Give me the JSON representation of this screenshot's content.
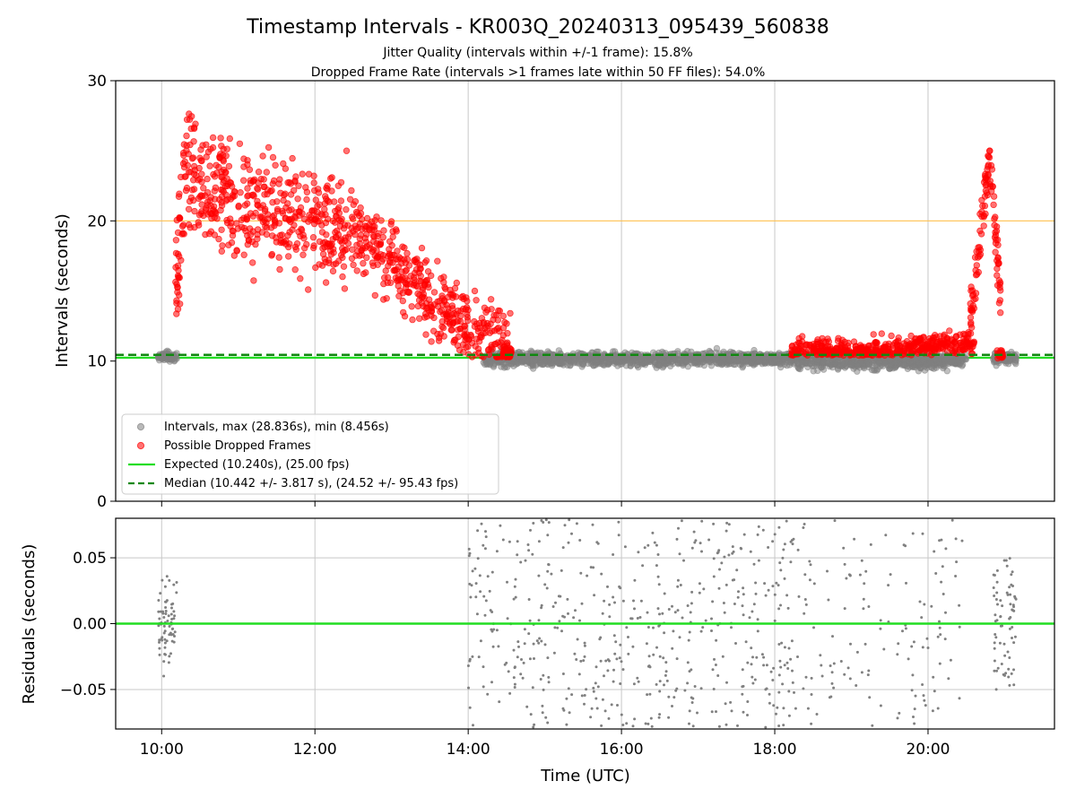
{
  "chart_data": [
    {
      "type": "scatter",
      "title": "Timestamp Intervals - KR003Q_20240313_095439_560838",
      "subtitle_lines": [
        "Jitter Quality (intervals within +/-1 frame): 15.8%",
        "Dropped Frame Rate (intervals >1 frames late within 50 FF files): 54.0%"
      ],
      "xlabel": "",
      "ylabel": "Intervals (seconds)",
      "x_range_hours": [
        9.4,
        21.65
      ],
      "ylim": [
        0,
        30
      ],
      "yticks": [
        0,
        10,
        20,
        30
      ],
      "xticks": [
        "10:00",
        "12:00",
        "14:00",
        "16:00",
        "18:00",
        "20:00"
      ],
      "xtick_hours": [
        10,
        12,
        14,
        16,
        18,
        20
      ],
      "grid": true,
      "threshold_line": {
        "y": 20,
        "color": "#ffc04d"
      },
      "expected_line": {
        "y": 10.24,
        "color": "#22dd22"
      },
      "median_line": {
        "y": 10.442,
        "color": "#118811"
      },
      "series": [
        {
          "name": "Intervals, max (28.836s), min (8.456s)",
          "color": "#808080",
          "max": 28.836,
          "min": 8.456
        },
        {
          "name": "Possible Dropped Frames",
          "color": "#ff0000"
        }
      ],
      "legend": {
        "placement": "lower-left",
        "entries": [
          "Intervals, max (28.836s), min (8.456s)",
          "Possible Dropped Frames",
          "Expected (10.240s), (25.00 fps)",
          "Median (10.442 +/- 3.817 s), (24.52 +/- 95.43 fps)"
        ]
      },
      "normal_segments": [
        {
          "from": 9.95,
          "to": 10.2,
          "mean": 10.3,
          "spread": 0.35
        },
        {
          "from": 14.2,
          "to": 18.3,
          "mean": 10.15,
          "spread": 0.55
        },
        {
          "from": 18.3,
          "to": 20.5,
          "mean": 10.0,
          "spread": 0.65
        },
        {
          "from": 20.85,
          "to": 21.15,
          "mean": 10.2,
          "spread": 0.45
        }
      ],
      "dropped_trend": [
        {
          "x": 10.18,
          "y": 12.5
        },
        {
          "x": 10.3,
          "y": 24.5
        },
        {
          "x": 10.5,
          "y": 22.5
        },
        {
          "x": 11.0,
          "y": 21.0
        },
        {
          "x": 11.5,
          "y": 20.5
        },
        {
          "x": 12.0,
          "y": 20.0
        },
        {
          "x": 12.5,
          "y": 19.5
        },
        {
          "x": 13.0,
          "y": 17.0
        },
        {
          "x": 13.5,
          "y": 14.5
        },
        {
          "x": 14.0,
          "y": 12.5
        },
        {
          "x": 14.45,
          "y": 11.5
        },
        {
          "x": 14.55,
          "y": 10.6
        }
      ],
      "dropped_late_range": {
        "from": 18.2,
        "to": 20.6,
        "min": 10.4,
        "max": 12.5
      },
      "dropped_spike": {
        "from": 20.55,
        "to": 20.95,
        "start": 12.5,
        "peak_x": 20.8,
        "peak": 25.0
      }
    },
    {
      "type": "scatter",
      "title": "",
      "xlabel": "Time (UTC)",
      "ylabel": "Residuals (seconds)",
      "ylim": [
        -0.08,
        0.08
      ],
      "yticks": [
        "−0.05",
        "0.00",
        "0.05"
      ],
      "ytick_values": [
        -0.05,
        0,
        0.05
      ],
      "xticks": [
        "10:00",
        "12:00",
        "14:00",
        "16:00",
        "18:00",
        "20:00"
      ],
      "xtick_hours": [
        10,
        12,
        14,
        16,
        18,
        20
      ],
      "grid": true,
      "zero_line": {
        "y": 0,
        "color": "#22dd22"
      },
      "series": [
        {
          "color": "#808080"
        }
      ],
      "residual_clusters": [
        {
          "from": 9.95,
          "to": 10.2,
          "count": 70,
          "spread": 0.035
        },
        {
          "from": 14.0,
          "to": 18.35,
          "count": 560,
          "spread": 0.085
        },
        {
          "from": 18.35,
          "to": 20.5,
          "count": 140,
          "spread": 0.085
        },
        {
          "from": 20.85,
          "to": 21.15,
          "count": 70,
          "spread": 0.05
        }
      ]
    }
  ]
}
